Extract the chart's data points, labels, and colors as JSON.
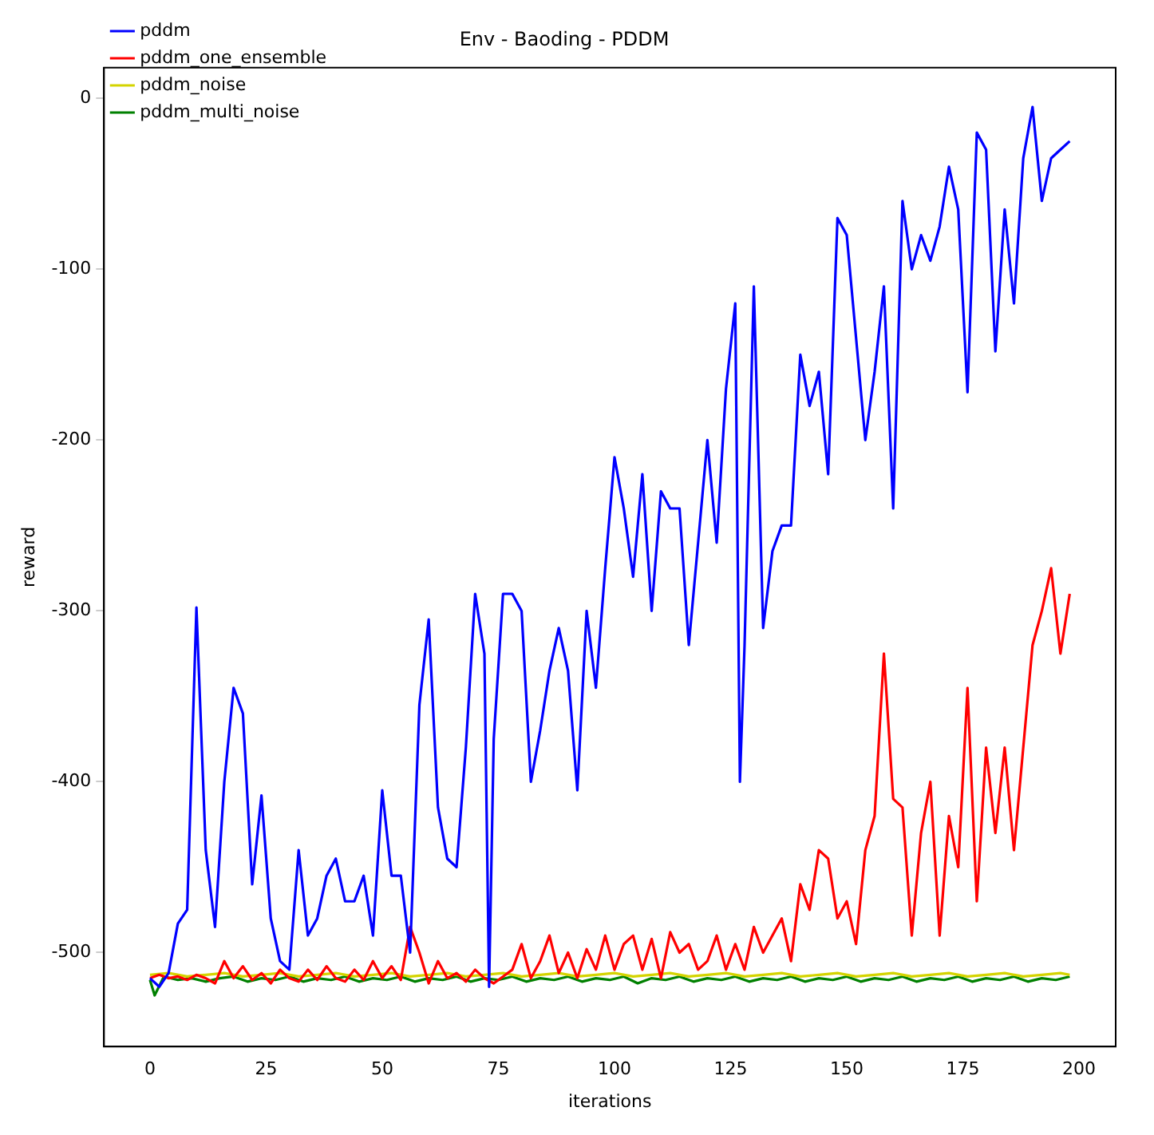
{
  "chart_data": {
    "type": "line",
    "title": "Env - Baoding - PDDM",
    "xlabel": "iterations",
    "ylabel": "reward",
    "xlim": [
      -9.9,
      207.9
    ],
    "ylim": [
      -555,
      18
    ],
    "xticks": [
      0,
      25,
      50,
      75,
      100,
      125,
      150,
      175,
      200
    ],
    "yticks": [
      -500,
      -400,
      -300,
      -200,
      -100,
      0
    ],
    "grid": false,
    "legend": "top left",
    "marker": "none",
    "line_style": "solid",
    "series": [
      {
        "name": "pddm",
        "color": "#0000ff",
        "x": [
          0,
          2,
          4,
          6,
          8,
          10,
          12,
          14,
          16,
          18,
          20,
          22,
          24,
          26,
          28,
          30,
          32,
          34,
          36,
          38,
          40,
          42,
          44,
          46,
          48,
          50,
          52,
          54,
          56,
          58,
          60,
          62,
          64,
          66,
          68,
          70,
          72,
          73,
          74,
          76,
          78,
          80,
          82,
          84,
          86,
          88,
          90,
          92,
          94,
          96,
          98,
          100,
          102,
          104,
          106,
          108,
          110,
          112,
          114,
          116,
          118,
          120,
          122,
          124,
          126,
          127,
          128,
          130,
          132,
          134,
          136,
          138,
          140,
          142,
          144,
          146,
          148,
          150,
          152,
          154,
          156,
          158,
          160,
          162,
          164,
          166,
          168,
          170,
          172,
          174,
          176,
          178,
          180,
          182,
          184,
          186,
          188,
          190,
          192,
          194,
          196,
          198
        ],
        "values": [
          -515,
          -520,
          -512,
          -483,
          -475,
          -298,
          -440,
          -485,
          -400,
          -345,
          -360,
          -460,
          -408,
          -480,
          -505,
          -510,
          -440,
          -490,
          -480,
          -455,
          -445,
          -470,
          -470,
          -455,
          -490,
          -405,
          -455,
          -455,
          -500,
          -355,
          -305,
          -415,
          -445,
          -450,
          -380,
          -290,
          -325,
          -520,
          -375,
          -290,
          -290,
          -300,
          -400,
          -370,
          -335,
          -310,
          -335,
          -405,
          -300,
          -345,
          -275,
          -210,
          -240,
          -280,
          -220,
          -300,
          -230,
          -240,
          -240,
          -320,
          -260,
          -200,
          -260,
          -170,
          -120,
          -400,
          -320,
          -110,
          -310,
          -265,
          -250,
          -250,
          -150,
          -180,
          -160,
          -220,
          -70,
          -80,
          -140,
          -200,
          -160,
          -110,
          -240,
          -60,
          -100,
          -80,
          -95,
          -75,
          -40,
          -65,
          -172,
          -20,
          -30,
          -148,
          -65,
          -120,
          -35,
          -5,
          -60,
          -35,
          -30,
          -25
        ]
      },
      {
        "name": "pddm_one_ensemble",
        "color": "#ff0000",
        "x": [
          0,
          2,
          4,
          6,
          8,
          10,
          12,
          14,
          16,
          18,
          20,
          22,
          24,
          26,
          28,
          30,
          32,
          34,
          36,
          38,
          40,
          42,
          44,
          46,
          48,
          50,
          52,
          54,
          56,
          58,
          60,
          62,
          64,
          66,
          68,
          70,
          72,
          74,
          76,
          78,
          80,
          82,
          84,
          86,
          88,
          90,
          92,
          94,
          96,
          98,
          100,
          102,
          104,
          106,
          108,
          110,
          112,
          114,
          116,
          118,
          120,
          122,
          124,
          126,
          128,
          130,
          132,
          134,
          136,
          138,
          140,
          142,
          144,
          146,
          148,
          150,
          152,
          154,
          156,
          158,
          160,
          162,
          164,
          166,
          168,
          170,
          172,
          174,
          176,
          178,
          180,
          182,
          184,
          186,
          188,
          190,
          192,
          194,
          196,
          198
        ],
        "values": [
          -515,
          -513,
          -515,
          -514,
          -516,
          -513,
          -515,
          -518,
          -505,
          -515,
          -508,
          -516,
          -512,
          -518,
          -510,
          -515,
          -517,
          -510,
          -516,
          -508,
          -515,
          -517,
          -510,
          -516,
          -505,
          -515,
          -508,
          -516,
          -485,
          -500,
          -518,
          -505,
          -515,
          -512,
          -517,
          -510,
          -515,
          -518,
          -514,
          -510,
          -495,
          -515,
          -505,
          -490,
          -512,
          -500,
          -515,
          -498,
          -510,
          -490,
          -510,
          -495,
          -490,
          -510,
          -492,
          -515,
          -488,
          -500,
          -495,
          -510,
          -505,
          -490,
          -510,
          -495,
          -510,
          -485,
          -500,
          -490,
          -480,
          -505,
          -460,
          -475,
          -440,
          -445,
          -480,
          -470,
          -495,
          -440,
          -420,
          -325,
          -410,
          -415,
          -490,
          -430,
          -400,
          -490,
          -420,
          -450,
          -345,
          -470,
          -380,
          -430,
          -380,
          -440,
          -380,
          -320,
          -300,
          -275,
          -325,
          -290
        ]
      },
      {
        "name": "pddm_noise",
        "color": "#d4d400",
        "x": [
          0,
          4,
          8,
          12,
          16,
          20,
          24,
          28,
          32,
          36,
          40,
          44,
          48,
          52,
          56,
          60,
          64,
          68,
          72,
          76,
          80,
          84,
          88,
          92,
          96,
          100,
          104,
          108,
          112,
          116,
          120,
          124,
          128,
          132,
          136,
          140,
          144,
          148,
          152,
          156,
          160,
          164,
          168,
          172,
          176,
          180,
          184,
          188,
          192,
          196,
          198
        ],
        "values": [
          -513,
          -512,
          -514,
          -513,
          -512,
          -514,
          -513,
          -512,
          -514,
          -513,
          -512,
          -514,
          -513,
          -512,
          -514,
          -513,
          -512,
          -514,
          -513,
          -512,
          -514,
          -513,
          -512,
          -514,
          -513,
          -512,
          -514,
          -513,
          -512,
          -514,
          -513,
          -512,
          -514,
          -513,
          -512,
          -514,
          -513,
          -512,
          -514,
          -513,
          -512,
          -514,
          -513,
          -512,
          -514,
          -513,
          -512,
          -514,
          -513,
          -512,
          -513
        ]
      },
      {
        "name": "pddm_multi_noise",
        "color": "#008000",
        "x": [
          0,
          1,
          3,
          6,
          9,
          12,
          15,
          18,
          21,
          24,
          27,
          30,
          33,
          36,
          39,
          42,
          45,
          48,
          51,
          54,
          57,
          60,
          63,
          66,
          69,
          72,
          75,
          78,
          81,
          84,
          87,
          90,
          93,
          96,
          99,
          102,
          105,
          108,
          111,
          114,
          117,
          120,
          123,
          126,
          129,
          132,
          135,
          138,
          141,
          144,
          147,
          150,
          153,
          156,
          159,
          162,
          165,
          168,
          171,
          174,
          177,
          180,
          183,
          186,
          189,
          192,
          195,
          198
        ],
        "values": [
          -516,
          -525,
          -514,
          -516,
          -515,
          -517,
          -515,
          -514,
          -517,
          -515,
          -516,
          -514,
          -517,
          -515,
          -516,
          -514,
          -517,
          -515,
          -516,
          -514,
          -517,
          -515,
          -516,
          -514,
          -517,
          -515,
          -516,
          -514,
          -517,
          -515,
          -516,
          -514,
          -517,
          -515,
          -516,
          -514,
          -518,
          -515,
          -516,
          -514,
          -517,
          -515,
          -516,
          -514,
          -517,
          -515,
          -516,
          -514,
          -517,
          -515,
          -516,
          -514,
          -517,
          -515,
          -516,
          -514,
          -517,
          -515,
          -516,
          -514,
          -517,
          -515,
          -516,
          -514,
          -517,
          -515,
          -516,
          -514
        ]
      }
    ]
  }
}
